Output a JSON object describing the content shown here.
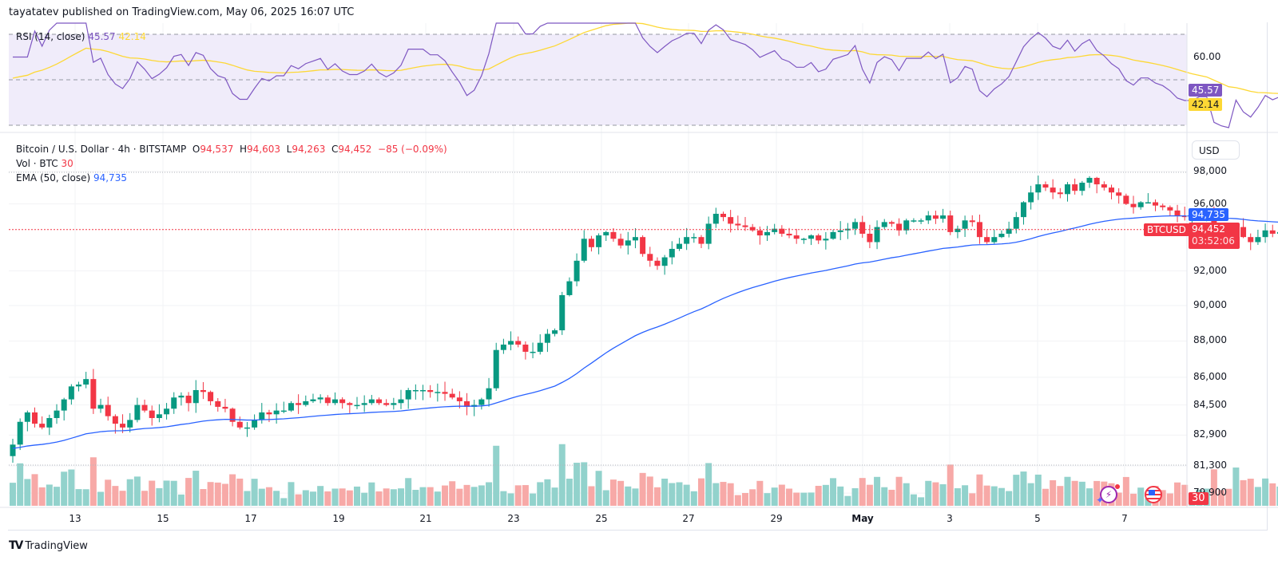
{
  "header": {
    "text": "tayatatev published on TradingView.com, May 06, 2025 16:07 UTC"
  },
  "rsi": {
    "label": "RSI (14, close)",
    "value": "45.57",
    "ma_value": "42.14",
    "axis_label": "60.00",
    "tag_rsi": "45.57",
    "tag_ma": "42.14",
    "colors": {
      "rsi": "#7e57c2",
      "ma": "#fdd835",
      "band": "#f0ecfa"
    }
  },
  "main": {
    "symbol": "Bitcoin / U.S. Dollar · 4h · BITSTAMP",
    "o_label": "O",
    "o": "94,537",
    "h_label": "H",
    "h": "94,603",
    "l_label": "L",
    "l": "94,263",
    "c_label": "C",
    "c": "94,452",
    "change": "−85 (−0.09%)",
    "vol_label": "Vol · BTC",
    "vol_value": "30",
    "ema_label": "EMA (50, close)",
    "ema_value": "94,735",
    "currency_button": "USD",
    "symbol_tag": "BTCUSD",
    "price_tag": "94,452",
    "countdown": "03:52:06",
    "ema_tag": "94,735",
    "vol_tag": "30"
  },
  "price_axis": [
    "98,000",
    "96,000",
    "92,000",
    "90,000",
    "88,000",
    "86,000",
    "84,500",
    "82,900",
    "81,300",
    "79,900"
  ],
  "time_axis": [
    "13",
    "15",
    "17",
    "19",
    "21",
    "23",
    "25",
    "27",
    "29",
    "May",
    "3",
    "5",
    "7"
  ],
  "footer": {
    "brand": "TradingView"
  },
  "colors": {
    "up": "#089981",
    "down": "#f23645",
    "up_vol": "#92d2cc",
    "down_vol": "#f7a9a7",
    "ema": "#2962ff",
    "last_price": "#f23645"
  },
  "chart_data": {
    "type": "candlestick",
    "title": "Bitcoin / U.S. Dollar · 4h · BITSTAMP",
    "xlabel": "",
    "ylabel": "USD",
    "ylim": [
      79900,
      98500
    ],
    "x_ticks": [
      "13",
      "15",
      "17",
      "19",
      "21",
      "23",
      "25",
      "27",
      "29",
      "May",
      "3",
      "5",
      "7"
    ],
    "y_ticks": [
      98000,
      96000,
      92000,
      90000,
      88000,
      86000,
      84500,
      82900,
      81300,
      79900
    ],
    "last": {
      "open": 94537,
      "high": 94603,
      "low": 94263,
      "close": 94452,
      "change": -85,
      "change_pct": -0.09
    },
    "ema50_last": 94735,
    "rsi_last": 45.57,
    "rsi_ma_last": 42.14,
    "volume_last": 30,
    "closes": [
      82400,
      83600,
      84100,
      83500,
      83300,
      83800,
      84200,
      84800,
      85500,
      85600,
      85900,
      84300,
      84500,
      83900,
      83500,
      83300,
      83700,
      84500,
      84200,
      83800,
      84000,
      84300,
      84900,
      85000,
      84600,
      85300,
      85200,
      84700,
      84400,
      84300,
      83600,
      83300,
      83300,
      83700,
      84100,
      84000,
      84200,
      84200,
      84600,
      84500,
      84700,
      84800,
      84900,
      84600,
      84800,
      84600,
      84500,
      84500,
      84600,
      84800,
      84600,
      84500,
      84600,
      84800,
      85300,
      85300,
      85300,
      85200,
      85200,
      85100,
      84900,
      84700,
      84400,
      84500,
      84800,
      85400,
      87500,
      87800,
      88000,
      87800,
      87400,
      87400,
      87900,
      88400,
      88600,
      90600,
      91400,
      92600,
      93900,
      93400,
      94100,
      94300,
      93900,
      93500,
      93800,
      94000,
      93000,
      92600,
      92300,
      92800,
      93300,
      93600,
      94000,
      94000,
      93600,
      94800,
      95400,
      95200,
      94800,
      94700,
      94600,
      94400,
      94100,
      94300,
      94500,
      94200,
      94100,
      93900,
      93900,
      94100,
      93800,
      93900,
      94300,
      94400,
      94500,
      94900,
      94200,
      93700,
      94600,
      94900,
      94800,
      94400,
      95000,
      95000,
      95000,
      95300,
      95100,
      95300,
      94300,
      94500,
      95000,
      94900,
      94000,
      93700,
      94000,
      94200,
      94500,
      95200,
      96100,
      96700,
      97200,
      97000,
      96700,
      96600,
      97200,
      96800,
      97300,
      97600,
      97200,
      97000,
      96700,
      96500,
      96000,
      95800,
      96100,
      96100,
      95900,
      95800,
      95600,
      95300,
      95200,
      95200,
      95300,
      95300,
      94200,
      94000,
      93800,
      94600,
      94000,
      93700,
      94000,
      94400,
      94200,
      94300,
      94200,
      93700,
      94500,
      94452
    ]
  }
}
